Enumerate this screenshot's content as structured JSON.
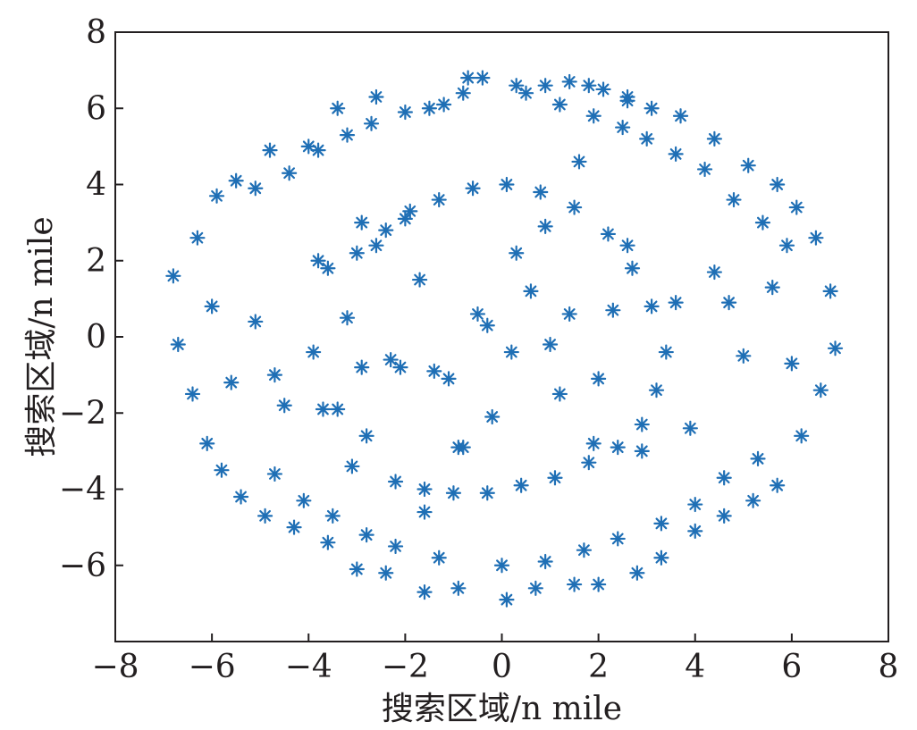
{
  "chart_data": {
    "type": "scatter",
    "title": "",
    "xlabel": "搜索区域/n mile",
    "ylabel": "搜索区域/n mile",
    "xlim": [
      -8,
      8
    ],
    "ylim": [
      -8,
      8
    ],
    "xticks": [
      -8,
      -6,
      -4,
      -2,
      0,
      2,
      4,
      6,
      8
    ],
    "yticks": [
      -6,
      -4,
      -2,
      0,
      2,
      4,
      6,
      8
    ],
    "xtick_labels": [
      "−8",
      "−6",
      "−4",
      "−2",
      "0",
      "2",
      "4",
      "6",
      "8"
    ],
    "ytick_labels": [
      "−6",
      "−4",
      "−2",
      "0",
      "2",
      "4",
      "6",
      "8"
    ],
    "grid": false,
    "marker": "asterisk",
    "marker_color": "#1f6fb5",
    "points_distribution": "approximately uniform search points within a disc of radius ~7 n mile centred at the origin, denser ring at radius ~3",
    "series": [
      {
        "x": [
          -0.7,
          -0.4,
          0.3,
          0.9,
          1.4,
          2.1,
          2.6,
          -1.2,
          -2.6,
          -3.4,
          -4.0,
          -4.8,
          -5.5,
          -5.9,
          -6.3,
          -6.8,
          -6.7,
          -6.4,
          -6.1,
          -5.8,
          -5.4,
          -4.9,
          -4.3,
          -3.6,
          -3.0,
          -2.4,
          -1.6,
          -0.9,
          0.1,
          0.7,
          1.5,
          2.0,
          2.8,
          3.3,
          4.0,
          4.6,
          5.2,
          5.7,
          6.2,
          6.6,
          6.9,
          6.8,
          6.5,
          6.1,
          5.7,
          5.1,
          4.4,
          3.7,
          3.1,
          2.6,
          1.8,
          -5.1,
          -4.4,
          -3.8,
          -3.2,
          -2.7,
          -2.0,
          -1.5,
          -0.8,
          0.5,
          1.2,
          1.9,
          2.5,
          3.0,
          3.6,
          4.2,
          4.8,
          5.4,
          5.9,
          -4.7,
          -4.1,
          -3.5,
          -2.8,
          -2.2,
          -1.3,
          0.0,
          0.9,
          1.7,
          2.4,
          3.3,
          4.0,
          4.6,
          5.3,
          -3.2,
          -2.9,
          -3.4,
          -3.6,
          -3.9,
          -3.0,
          -2.4,
          -1.9,
          -2.8,
          -3.1,
          -2.2,
          -1.6,
          -1.0,
          -0.3,
          0.4,
          1.1,
          1.8,
          2.4,
          2.9,
          3.2,
          3.4,
          3.1,
          2.7,
          2.2,
          1.5,
          0.8,
          0.1,
          -0.6,
          -1.3,
          -2.0,
          -2.6,
          -0.5,
          0.6,
          -1.1,
          1.2,
          2.3,
          -2.3,
          -0.2,
          0.3,
          -0.9,
          1.9,
          2.6,
          -1.7,
          1.0,
          3.6,
          -3.7,
          0.2,
          -0.3,
          2.0,
          -2.1,
          4.4,
          -4.5,
          1.4,
          -1.4,
          0.9,
          -0.8,
          5.0,
          -5.1,
          3.9,
          -3.8,
          4.7,
          -4.7,
          2.9,
          -2.9,
          5.6,
          -5.6,
          6.0,
          -6.0,
          1.6,
          -1.6
        ],
        "y": [
          6.8,
          6.8,
          6.6,
          6.6,
          6.7,
          6.5,
          6.3,
          6.1,
          6.3,
          6.0,
          5.0,
          4.9,
          4.1,
          3.7,
          2.6,
          1.6,
          -0.2,
          -1.5,
          -2.8,
          -3.5,
          -4.2,
          -4.7,
          -5.0,
          -5.4,
          -6.1,
          -6.2,
          -6.7,
          -6.6,
          -6.9,
          -6.6,
          -6.5,
          -6.5,
          -6.2,
          -5.8,
          -5.1,
          -4.7,
          -4.3,
          -3.9,
          -2.6,
          -1.4,
          -0.3,
          1.2,
          2.6,
          3.4,
          4.0,
          4.5,
          5.2,
          5.8,
          6.0,
          6.2,
          6.6,
          3.9,
          4.3,
          4.9,
          5.3,
          5.6,
          5.9,
          6.0,
          6.4,
          6.4,
          6.1,
          5.8,
          5.5,
          5.2,
          4.8,
          4.4,
          3.6,
          3.0,
          2.4,
          -3.6,
          -4.3,
          -4.7,
          -5.2,
          -5.5,
          -5.8,
          -6.0,
          -5.9,
          -5.6,
          -5.3,
          -4.9,
          -4.4,
          -3.7,
          -3.2,
          0.5,
          -0.8,
          -1.9,
          1.8,
          -0.4,
          2.2,
          2.8,
          3.3,
          -2.6,
          -3.4,
          -3.8,
          -4.0,
          -4.1,
          -4.1,
          -3.9,
          -3.7,
          -3.3,
          -2.9,
          -2.3,
          -1.4,
          -0.4,
          0.8,
          1.8,
          2.7,
          3.4,
          3.8,
          4.0,
          3.9,
          3.6,
          3.1,
          2.4,
          0.6,
          1.2,
          -1.1,
          -1.5,
          0.7,
          -0.6,
          -2.1,
          2.2,
          -2.9,
          -2.8,
          2.4,
          1.5,
          -0.2,
          0.9,
          -1.9,
          -0.4,
          0.3,
          -1.1,
          -0.8,
          1.7,
          -1.8,
          0.6,
          -0.9,
          2.9,
          -2.9,
          -0.5,
          0.4,
          -2.4,
          2.0,
          0.9,
          -1.0,
          -3.0,
          3.0,
          1.3,
          -1.2,
          -0.7,
          0.8,
          4.6,
          -4.6
        ]
      }
    ]
  }
}
